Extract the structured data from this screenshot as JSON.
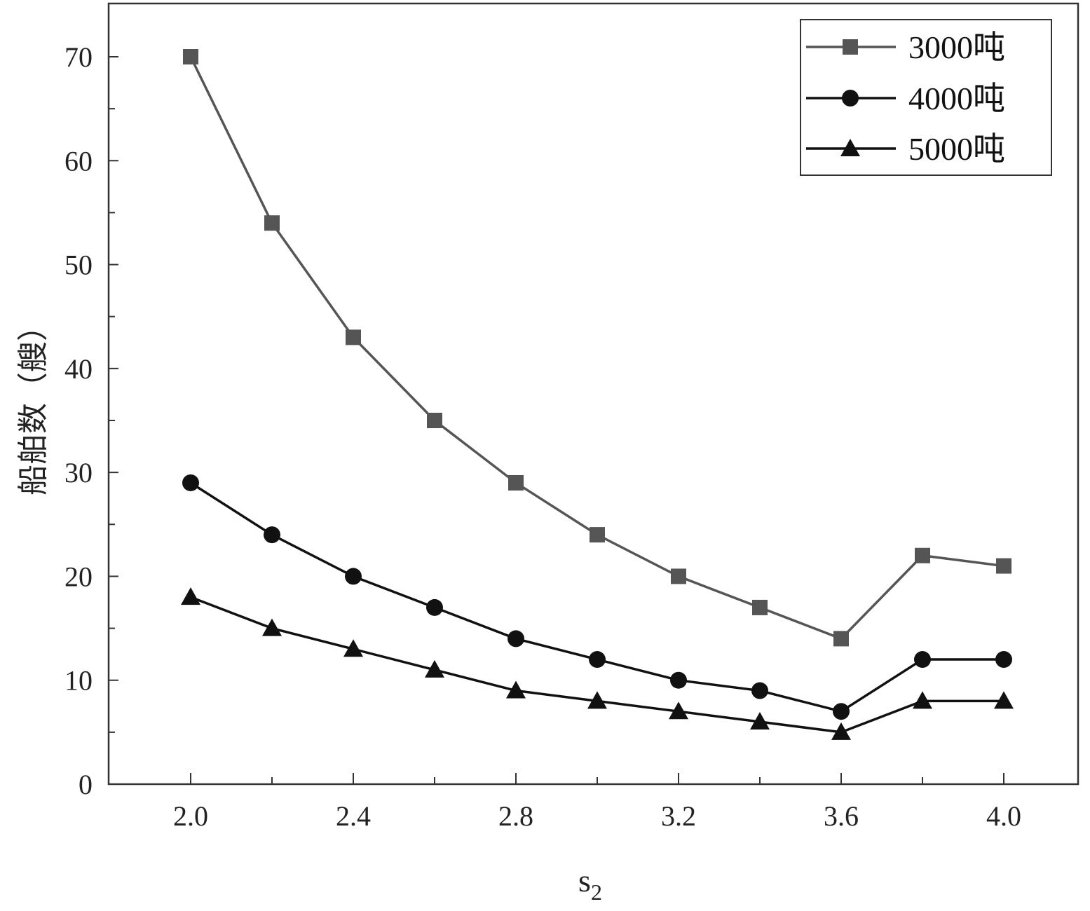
{
  "chart_data": {
    "type": "line",
    "title": "",
    "xlabel": "s",
    "xlabel_sub": "2",
    "ylabel": "船舶数（艘）",
    "x": [
      2.0,
      2.2,
      2.4,
      2.6,
      2.8,
      3.0,
      3.2,
      3.4,
      3.6,
      3.8,
      4.0
    ],
    "xlim": [
      1.8,
      4.2
    ],
    "ylim": [
      0,
      75
    ],
    "x_ticks_labeled": [
      "2.0",
      "2.4",
      "2.8",
      "3.2",
      "3.6",
      "4.0"
    ],
    "y_ticks_labeled": [
      "0",
      "10",
      "20",
      "30",
      "40",
      "50",
      "60",
      "70"
    ],
    "grid": false,
    "legend_position": "top-right",
    "series": [
      {
        "name": "3000吨",
        "marker": "square",
        "color": "#555555",
        "values": [
          70,
          54,
          43,
          35,
          29,
          24,
          20,
          17,
          14,
          22,
          21
        ]
      },
      {
        "name": "4000吨",
        "marker": "circle",
        "color": "#111111",
        "values": [
          29,
          24,
          20,
          17,
          14,
          12,
          10,
          9,
          7,
          12,
          12
        ]
      },
      {
        "name": "5000吨",
        "marker": "triangle",
        "color": "#111111",
        "values": [
          18,
          15,
          13,
          11,
          9,
          8,
          7,
          6,
          5,
          8,
          8
        ]
      }
    ]
  }
}
